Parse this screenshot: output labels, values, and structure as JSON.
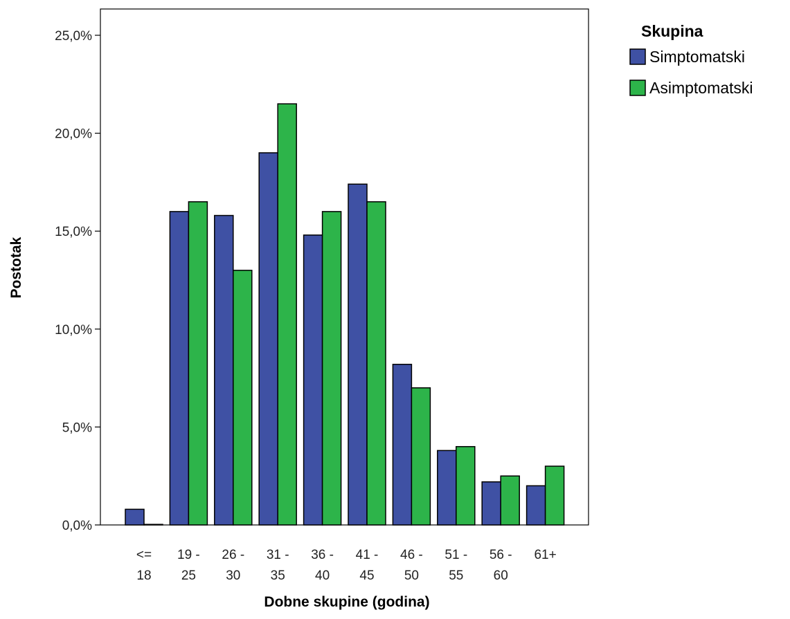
{
  "chart_data": {
    "type": "bar",
    "title": "",
    "xlabel": "Dobne skupine (godina)",
    "ylabel": "Postotak",
    "categories": [
      [
        "<=",
        "18"
      ],
      [
        "19 -",
        "25"
      ],
      [
        "26 -",
        "30"
      ],
      [
        "31 -",
        "35"
      ],
      [
        "36 -",
        "40"
      ],
      [
        "41 -",
        "45"
      ],
      [
        "46 -",
        "50"
      ],
      [
        "51 -",
        "55"
      ],
      [
        "56 -",
        "60"
      ],
      [
        "61+",
        ""
      ]
    ],
    "series": [
      {
        "name": "Simptomatski",
        "color": "#3f51a4",
        "values": [
          0.8,
          16.0,
          15.8,
          19.0,
          14.8,
          17.4,
          8.2,
          3.8,
          2.2,
          2.0
        ]
      },
      {
        "name": "Asimptomatski",
        "color": "#2db44a",
        "values": [
          0.0,
          16.5,
          13.0,
          21.5,
          16.0,
          16.5,
          7.0,
          4.0,
          2.5,
          3.0
        ]
      }
    ],
    "ylim": [
      0,
      25
    ],
    "yticks": [
      "0,0%",
      "5,0%",
      "10,0%",
      "15,0%",
      "20,0%",
      "25,0%"
    ],
    "ytick_values": [
      0,
      5,
      10,
      15,
      20,
      25
    ],
    "legend": {
      "title": "Skupina",
      "position": "top-right"
    },
    "grid": false
  }
}
